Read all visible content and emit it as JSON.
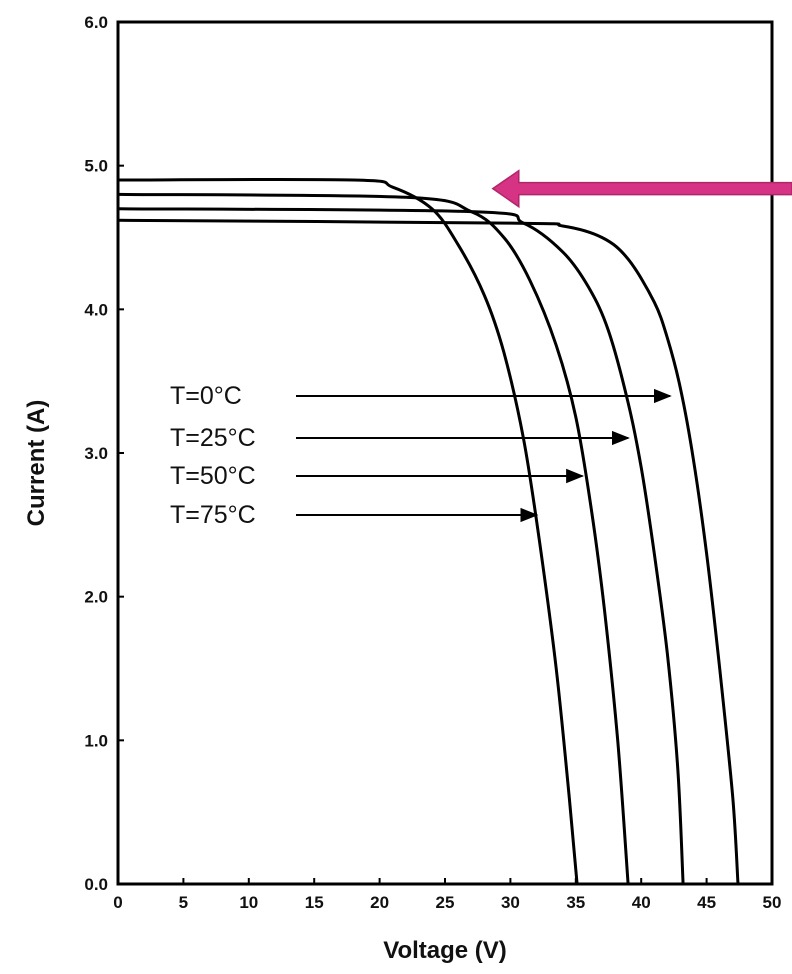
{
  "chart_data": {
    "type": "line",
    "title": "",
    "xlabel": "Voltage (V)",
    "ylabel": "Current (A)",
    "xlim": [
      0,
      50
    ],
    "ylim": [
      0,
      6
    ],
    "x_ticks": [
      "0",
      "5",
      "10",
      "15",
      "20",
      "25",
      "30",
      "35",
      "40",
      "45",
      "50"
    ],
    "y_ticks": [
      "0.0",
      "1.0",
      "2.0",
      "3.0",
      "4.0",
      "5.0",
      "6.0"
    ],
    "grid": false,
    "legend": "none",
    "series": [
      {
        "name": "T=0°C",
        "points": [
          [
            0,
            4.62
          ],
          [
            30,
            4.6
          ],
          [
            34,
            4.58
          ],
          [
            37,
            4.5
          ],
          [
            39,
            4.35
          ],
          [
            41,
            4.05
          ],
          [
            42,
            3.8
          ],
          [
            43,
            3.45
          ],
          [
            44,
            2.95
          ],
          [
            45,
            2.3
          ],
          [
            46,
            1.5
          ],
          [
            47,
            0.6
          ],
          [
            47.4,
            0
          ]
        ]
      },
      {
        "name": "T=25°C",
        "points": [
          [
            0,
            4.7
          ],
          [
            27,
            4.68
          ],
          [
            31,
            4.6
          ],
          [
            34,
            4.4
          ],
          [
            36,
            4.15
          ],
          [
            37.5,
            3.85
          ],
          [
            39,
            3.35
          ],
          [
            40,
            2.9
          ],
          [
            41,
            2.3
          ],
          [
            42,
            1.6
          ],
          [
            42.8,
            0.8
          ],
          [
            43.2,
            0
          ]
        ]
      },
      {
        "name": "T=50°C",
        "points": [
          [
            0,
            4.8
          ],
          [
            22,
            4.78
          ],
          [
            27,
            4.68
          ],
          [
            29.5,
            4.5
          ],
          [
            31.5,
            4.2
          ],
          [
            33.5,
            3.75
          ],
          [
            35,
            3.25
          ],
          [
            36.2,
            2.6
          ],
          [
            37.2,
            1.9
          ],
          [
            38.2,
            1.0
          ],
          [
            39,
            0
          ]
        ]
      },
      {
        "name": "T=75°C",
        "points": [
          [
            0,
            4.9
          ],
          [
            18,
            4.9
          ],
          [
            21,
            4.85
          ],
          [
            24,
            4.7
          ],
          [
            26,
            4.45
          ],
          [
            28,
            4.1
          ],
          [
            29.5,
            3.7
          ],
          [
            31,
            3.1
          ],
          [
            32.2,
            2.4
          ],
          [
            33.5,
            1.5
          ],
          [
            34.5,
            0.6
          ],
          [
            35.1,
            0
          ]
        ]
      }
    ],
    "annotations": [
      {
        "label": "T=0°C",
        "arrow_to": [
          42.2,
          3.4
        ]
      },
      {
        "label": "T=25°C",
        "arrow_to": [
          39.0,
          3.1
        ]
      },
      {
        "label": "T=50°C",
        "arrow_to": [
          35.5,
          2.85
        ]
      },
      {
        "label": "T=75°C",
        "arrow_to": [
          32.0,
          2.57
        ]
      }
    ],
    "highlight_arrow": {
      "color": "#d63384",
      "points_to": [
        28.5,
        4.84
      ]
    }
  }
}
